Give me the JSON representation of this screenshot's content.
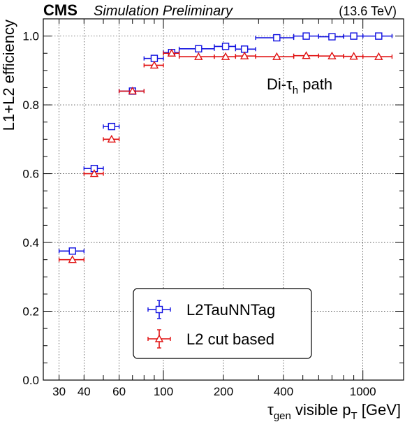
{
  "header": {
    "experiment": "CMS",
    "status": "Simulation Preliminary",
    "energy": "(13.6 TeV)"
  },
  "annotation": {
    "prefix": "Di-τ",
    "sub": "h",
    "suffix": " path"
  },
  "chart_data": {
    "type": "scatter",
    "x_scale": "log",
    "xlim": [
      25,
      1600
    ],
    "ylim": [
      0,
      1.05
    ],
    "xlabel": {
      "main": "τ",
      "sub": "gen",
      "mid": " visible p",
      "sub2": "T",
      "tail": " [GeV]"
    },
    "ylabel": "L1+L2 efficiency",
    "xticks": [
      {
        "value": 30,
        "label": "30"
      },
      {
        "value": 40,
        "label": "40"
      },
      {
        "value": 60,
        "label": "60"
      },
      {
        "value": 100,
        "label": "100"
      },
      {
        "value": 200,
        "label": "200"
      },
      {
        "value": 400,
        "label": "400"
      },
      {
        "value": 1000,
        "label": "1000"
      }
    ],
    "yticks": [
      {
        "value": 0.0,
        "label": "0.0"
      },
      {
        "value": 0.2,
        "label": "0.2"
      },
      {
        "value": 0.4,
        "label": "0.4"
      },
      {
        "value": 0.6,
        "label": "0.6"
      },
      {
        "value": 0.8,
        "label": "0.8"
      },
      {
        "value": 1.0,
        "label": "1.0"
      }
    ],
    "grid": true,
    "legend_position": "bottom-center",
    "series": [
      {
        "name": "L2TauNNTag",
        "color": "#1010e0",
        "marker": "square",
        "points": [
          {
            "x": 35,
            "xlo": 30,
            "xhi": 40,
            "y": 0.375
          },
          {
            "x": 45,
            "xlo": 40,
            "xhi": 50,
            "y": 0.615
          },
          {
            "x": 55,
            "xlo": 50,
            "xhi": 60,
            "y": 0.737
          },
          {
            "x": 70,
            "xlo": 60,
            "xhi": 80,
            "y": 0.84
          },
          {
            "x": 90,
            "xlo": 80,
            "xhi": 100,
            "y": 0.935
          },
          {
            "x": 110,
            "xlo": 100,
            "xhi": 120,
            "y": 0.952
          },
          {
            "x": 150,
            "xlo": 120,
            "xhi": 180,
            "y": 0.963
          },
          {
            "x": 205,
            "xlo": 180,
            "xhi": 230,
            "y": 0.97
          },
          {
            "x": 255,
            "xlo": 230,
            "xhi": 290,
            "y": 0.962
          },
          {
            "x": 370,
            "xlo": 290,
            "xhi": 450,
            "y": 0.995
          },
          {
            "x": 520,
            "xlo": 450,
            "xhi": 600,
            "y": 1.0
          },
          {
            "x": 700,
            "xlo": 600,
            "xhi": 800,
            "y": 0.998
          },
          {
            "x": 900,
            "xlo": 800,
            "xhi": 1000,
            "y": 1.0
          },
          {
            "x": 1200,
            "xlo": 1000,
            "xhi": 1400,
            "y": 1.0
          }
        ]
      },
      {
        "name": "L2 cut based",
        "color": "#e01010",
        "marker": "triangle",
        "points": [
          {
            "x": 35,
            "xlo": 30,
            "xhi": 40,
            "y": 0.35
          },
          {
            "x": 45,
            "xlo": 40,
            "xhi": 50,
            "y": 0.6
          },
          {
            "x": 55,
            "xlo": 50,
            "xhi": 60,
            "y": 0.7
          },
          {
            "x": 70,
            "xlo": 60,
            "xhi": 80,
            "y": 0.84
          },
          {
            "x": 90,
            "xlo": 80,
            "xhi": 100,
            "y": 0.915
          },
          {
            "x": 110,
            "xlo": 100,
            "xhi": 120,
            "y": 0.95
          },
          {
            "x": 150,
            "xlo": 120,
            "xhi": 180,
            "y": 0.94
          },
          {
            "x": 205,
            "xlo": 180,
            "xhi": 230,
            "y": 0.94
          },
          {
            "x": 255,
            "xlo": 230,
            "xhi": 290,
            "y": 0.942
          },
          {
            "x": 370,
            "xlo": 290,
            "xhi": 450,
            "y": 0.94
          },
          {
            "x": 520,
            "xlo": 450,
            "xhi": 600,
            "y": 0.943
          },
          {
            "x": 700,
            "xlo": 600,
            "xhi": 800,
            "y": 0.942
          },
          {
            "x": 900,
            "xlo": 800,
            "xhi": 1000,
            "y": 0.941
          },
          {
            "x": 1200,
            "xlo": 1000,
            "xhi": 1400,
            "y": 0.94
          }
        ]
      }
    ]
  }
}
